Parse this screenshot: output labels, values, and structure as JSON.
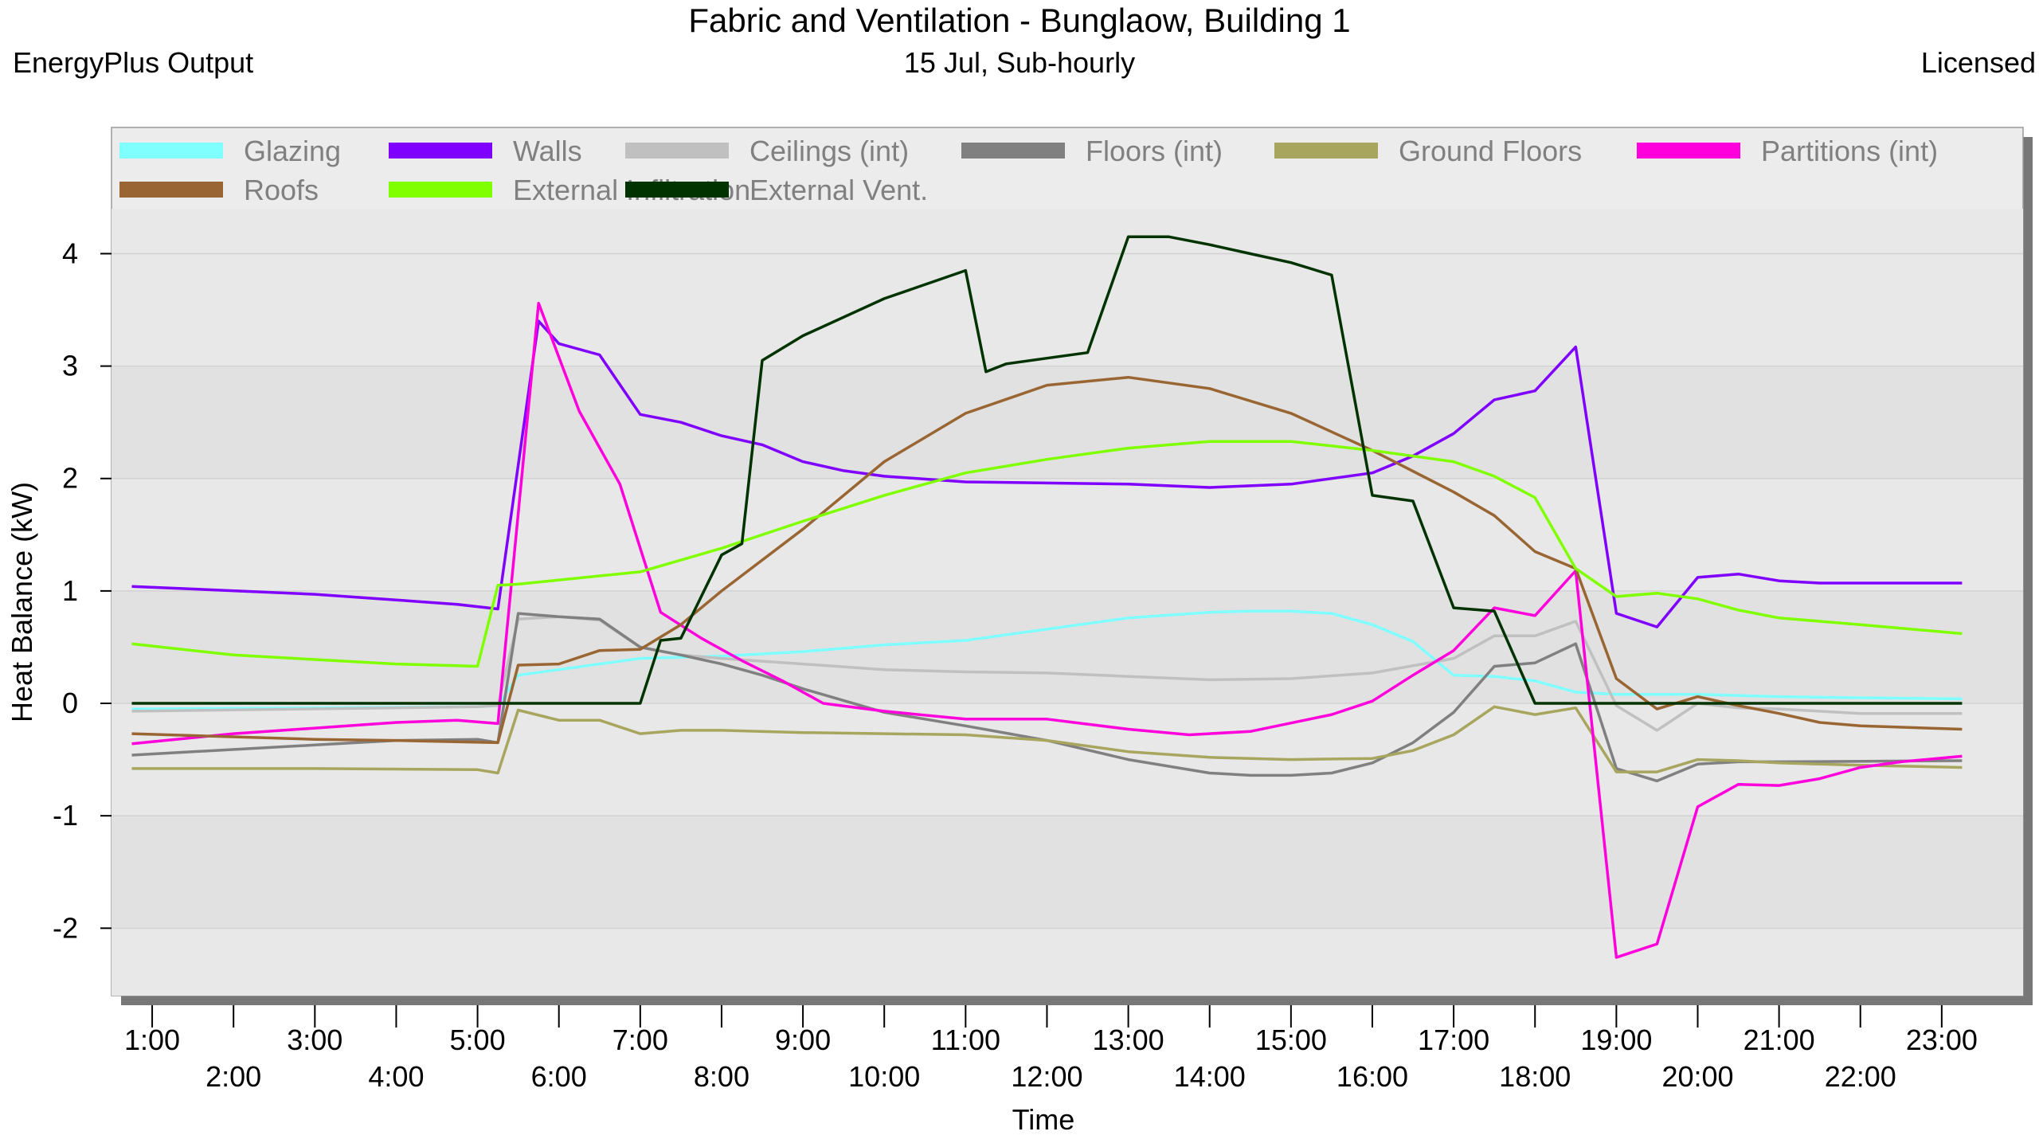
{
  "header": {
    "title": "Fabric and Ventilation - Bunglaow, Building 1",
    "source": "EnergyPlus Output",
    "subtitle": "15 Jul, Sub-hourly",
    "license": "Licensed"
  },
  "chart_data": {
    "type": "line",
    "title": "Fabric and Ventilation - Bunglaow, Building 1",
    "subtitle": "15 Jul, Sub-hourly",
    "xlabel": "Time",
    "ylabel": "Heat Balance (kW)",
    "xlim": [
      0.5,
      24
    ],
    "ylim": [
      -2.6,
      4.4
    ],
    "yticks": [
      -2,
      -1,
      0,
      1,
      2,
      3,
      4
    ],
    "xticks": [
      {
        "h": 1,
        "label": "1:00"
      },
      {
        "h": 2,
        "label": "2:00"
      },
      {
        "h": 3,
        "label": "3:00"
      },
      {
        "h": 4,
        "label": "4:00"
      },
      {
        "h": 5,
        "label": "5:00"
      },
      {
        "h": 6,
        "label": "6:00"
      },
      {
        "h": 7,
        "label": "7:00"
      },
      {
        "h": 8,
        "label": "8:00"
      },
      {
        "h": 9,
        "label": "9:00"
      },
      {
        "h": 10,
        "label": "10:00"
      },
      {
        "h": 11,
        "label": "11:00"
      },
      {
        "h": 12,
        "label": "12:00"
      },
      {
        "h": 13,
        "label": "13:00"
      },
      {
        "h": 14,
        "label": "14:00"
      },
      {
        "h": 15,
        "label": "15:00"
      },
      {
        "h": 16,
        "label": "16:00"
      },
      {
        "h": 17,
        "label": "17:00"
      },
      {
        "h": 18,
        "label": "18:00"
      },
      {
        "h": 19,
        "label": "19:00"
      },
      {
        "h": 20,
        "label": "20:00"
      },
      {
        "h": 21,
        "label": "21:00"
      },
      {
        "h": 22,
        "label": "22:00"
      },
      {
        "h": 23,
        "label": "23:00"
      }
    ],
    "grid": true,
    "legend_position": "top",
    "series": [
      {
        "name": "Glazing",
        "color": "#80ffff",
        "points": [
          [
            0.75,
            -0.05
          ],
          [
            5,
            -0.03
          ],
          [
            5.25,
            -0.02
          ],
          [
            5.5,
            0.25
          ],
          [
            6,
            0.3
          ],
          [
            6.5,
            0.35
          ],
          [
            7,
            0.4
          ],
          [
            8,
            0.42
          ],
          [
            9,
            0.46
          ],
          [
            10,
            0.52
          ],
          [
            11,
            0.56
          ],
          [
            12,
            0.66
          ],
          [
            13,
            0.76
          ],
          [
            14,
            0.81
          ],
          [
            14.5,
            0.82
          ],
          [
            15,
            0.82
          ],
          [
            15.5,
            0.8
          ],
          [
            16,
            0.7
          ],
          [
            16.5,
            0.55
          ],
          [
            17,
            0.25
          ],
          [
            17.5,
            0.24
          ],
          [
            18,
            0.2
          ],
          [
            18.5,
            0.1
          ],
          [
            19,
            0.08
          ],
          [
            20,
            0.08
          ],
          [
            21,
            0.06
          ],
          [
            22,
            0.05
          ],
          [
            23.25,
            0.04
          ]
        ]
      },
      {
        "name": "Walls",
        "color": "#8000ff",
        "points": [
          [
            0.75,
            1.04
          ],
          [
            3,
            0.97
          ],
          [
            4,
            0.92
          ],
          [
            4.75,
            0.88
          ],
          [
            5.25,
            0.84
          ],
          [
            5.75,
            3.4
          ],
          [
            6,
            3.2
          ],
          [
            6.5,
            3.1
          ],
          [
            7,
            2.57
          ],
          [
            7.5,
            2.5
          ],
          [
            8,
            2.38
          ],
          [
            8.5,
            2.3
          ],
          [
            9,
            2.15
          ],
          [
            9.5,
            2.07
          ],
          [
            10,
            2.02
          ],
          [
            11,
            1.97
          ],
          [
            12,
            1.96
          ],
          [
            13,
            1.95
          ],
          [
            14,
            1.92
          ],
          [
            15,
            1.95
          ],
          [
            16,
            2.05
          ],
          [
            16.5,
            2.2
          ],
          [
            17,
            2.4
          ],
          [
            17.5,
            2.7
          ],
          [
            18,
            2.78
          ],
          [
            18.5,
            3.17
          ],
          [
            19,
            0.8
          ],
          [
            19.5,
            0.68
          ],
          [
            20,
            1.12
          ],
          [
            20.5,
            1.15
          ],
          [
            21,
            1.09
          ],
          [
            21.5,
            1.07
          ],
          [
            23.25,
            1.07
          ]
        ]
      },
      {
        "name": "Ceilings (int)",
        "color": "#c0c0c0",
        "points": [
          [
            0.75,
            -0.07
          ],
          [
            5,
            -0.03
          ],
          [
            5.25,
            -0.02
          ],
          [
            5.5,
            0.75
          ],
          [
            6,
            0.77
          ],
          [
            6.5,
            0.74
          ],
          [
            7,
            0.5
          ],
          [
            7.5,
            0.43
          ],
          [
            8,
            0.4
          ],
          [
            9,
            0.35
          ],
          [
            10,
            0.3
          ],
          [
            11,
            0.28
          ],
          [
            12,
            0.27
          ],
          [
            13,
            0.24
          ],
          [
            14,
            0.21
          ],
          [
            15,
            0.22
          ],
          [
            16,
            0.27
          ],
          [
            17,
            0.4
          ],
          [
            17.5,
            0.6
          ],
          [
            18,
            0.6
          ],
          [
            18.5,
            0.73
          ],
          [
            19,
            -0.02
          ],
          [
            19.5,
            -0.24
          ],
          [
            20,
            0
          ],
          [
            20.5,
            -0.04
          ],
          [
            21,
            -0.05
          ],
          [
            22,
            -0.09
          ],
          [
            23.25,
            -0.09
          ]
        ]
      },
      {
        "name": "Floors (int)",
        "color": "#808080",
        "points": [
          [
            0.75,
            -0.46
          ],
          [
            3,
            -0.37
          ],
          [
            4,
            -0.33
          ],
          [
            5,
            -0.32
          ],
          [
            5.25,
            -0.35
          ],
          [
            5.5,
            0.8
          ],
          [
            6,
            0.77
          ],
          [
            6.5,
            0.75
          ],
          [
            7,
            0.5
          ],
          [
            7.5,
            0.43
          ],
          [
            8,
            0.35
          ],
          [
            8.5,
            0.25
          ],
          [
            9,
            0.13
          ],
          [
            10,
            -0.08
          ],
          [
            11,
            -0.2
          ],
          [
            12,
            -0.33
          ],
          [
            13,
            -0.5
          ],
          [
            14,
            -0.62
          ],
          [
            14.5,
            -0.64
          ],
          [
            15,
            -0.64
          ],
          [
            15.5,
            -0.62
          ],
          [
            16,
            -0.53
          ],
          [
            16.5,
            -0.35
          ],
          [
            17,
            -0.08
          ],
          [
            17.5,
            0.33
          ],
          [
            18,
            0.36
          ],
          [
            18.5,
            0.53
          ],
          [
            19,
            -0.58
          ],
          [
            19.5,
            -0.69
          ],
          [
            20,
            -0.54
          ],
          [
            20.5,
            -0.52
          ],
          [
            21,
            -0.52
          ],
          [
            23.25,
            -0.51
          ]
        ]
      },
      {
        "name": "Ground Floors",
        "color": "#a8a55e",
        "points": [
          [
            0.75,
            -0.58
          ],
          [
            3,
            -0.58
          ],
          [
            5,
            -0.59
          ],
          [
            5.25,
            -0.62
          ],
          [
            5.5,
            -0.06
          ],
          [
            6,
            -0.15
          ],
          [
            6.5,
            -0.15
          ],
          [
            7,
            -0.27
          ],
          [
            7.5,
            -0.24
          ],
          [
            8,
            -0.24
          ],
          [
            9,
            -0.26
          ],
          [
            10,
            -0.27
          ],
          [
            11,
            -0.28
          ],
          [
            12,
            -0.33
          ],
          [
            13,
            -0.43
          ],
          [
            14,
            -0.48
          ],
          [
            15,
            -0.5
          ],
          [
            16,
            -0.49
          ],
          [
            16.5,
            -0.42
          ],
          [
            17,
            -0.28
          ],
          [
            17.5,
            -0.03
          ],
          [
            18,
            -0.1
          ],
          [
            18.5,
            -0.04
          ],
          [
            19,
            -0.61
          ],
          [
            19.5,
            -0.61
          ],
          [
            20,
            -0.5
          ],
          [
            20.5,
            -0.51
          ],
          [
            21,
            -0.53
          ],
          [
            22,
            -0.55
          ],
          [
            23.25,
            -0.57
          ]
        ]
      },
      {
        "name": "Partitions (int)",
        "color": "#ff00dd",
        "points": [
          [
            0.75,
            -0.36
          ],
          [
            2,
            -0.27
          ],
          [
            3,
            -0.22
          ],
          [
            4,
            -0.17
          ],
          [
            4.75,
            -0.15
          ],
          [
            5.25,
            -0.18
          ],
          [
            5.75,
            3.56
          ],
          [
            6.25,
            2.6
          ],
          [
            6.75,
            1.95
          ],
          [
            7.25,
            0.81
          ],
          [
            7.75,
            0.58
          ],
          [
            8.25,
            0.38
          ],
          [
            8.75,
            0.2
          ],
          [
            9.25,
            0
          ],
          [
            10,
            -0.07
          ],
          [
            11,
            -0.14
          ],
          [
            12,
            -0.14
          ],
          [
            13,
            -0.23
          ],
          [
            13.75,
            -0.28
          ],
          [
            14.5,
            -0.25
          ],
          [
            15.5,
            -0.1
          ],
          [
            16,
            0.02
          ],
          [
            16.5,
            0.25
          ],
          [
            17,
            0.47
          ],
          [
            17.5,
            0.85
          ],
          [
            18,
            0.78
          ],
          [
            18.5,
            1.18
          ],
          [
            19,
            -2.26
          ],
          [
            19.5,
            -2.14
          ],
          [
            20,
            -0.92
          ],
          [
            20.5,
            -0.72
          ],
          [
            21,
            -0.73
          ],
          [
            21.5,
            -0.67
          ],
          [
            22,
            -0.57
          ],
          [
            22.5,
            -0.52
          ],
          [
            23.25,
            -0.47
          ]
        ]
      },
      {
        "name": "Roofs",
        "color": "#996633",
        "points": [
          [
            0.75,
            -0.27
          ],
          [
            3,
            -0.32
          ],
          [
            4,
            -0.33
          ],
          [
            5.25,
            -0.35
          ],
          [
            5.5,
            0.34
          ],
          [
            6,
            0.35
          ],
          [
            6.5,
            0.47
          ],
          [
            7,
            0.48
          ],
          [
            7.5,
            0.7
          ],
          [
            8,
            1.0
          ],
          [
            9,
            1.55
          ],
          [
            10,
            2.15
          ],
          [
            11,
            2.58
          ],
          [
            12,
            2.83
          ],
          [
            13,
            2.9
          ],
          [
            14,
            2.8
          ],
          [
            15,
            2.58
          ],
          [
            16,
            2.25
          ],
          [
            17,
            1.88
          ],
          [
            17.5,
            1.67
          ],
          [
            18,
            1.35
          ],
          [
            18.5,
            1.2
          ],
          [
            19,
            0.22
          ],
          [
            19.5,
            -0.05
          ],
          [
            20,
            0.06
          ],
          [
            20.5,
            -0.02
          ],
          [
            21,
            -0.09
          ],
          [
            21.5,
            -0.17
          ],
          [
            22,
            -0.2
          ],
          [
            23.25,
            -0.23
          ]
        ]
      },
      {
        "name": "External Infiltration",
        "color": "#80ff00",
        "points": [
          [
            0.75,
            0.53
          ],
          [
            2,
            0.43
          ],
          [
            3,
            0.39
          ],
          [
            4,
            0.35
          ],
          [
            5,
            0.33
          ],
          [
            5.25,
            1.05
          ],
          [
            5.5,
            1.06
          ],
          [
            7,
            1.17
          ],
          [
            8,
            1.38
          ],
          [
            9,
            1.62
          ],
          [
            10,
            1.85
          ],
          [
            11,
            2.05
          ],
          [
            12,
            2.17
          ],
          [
            13,
            2.27
          ],
          [
            14,
            2.33
          ],
          [
            15,
            2.33
          ],
          [
            16,
            2.25
          ],
          [
            17,
            2.15
          ],
          [
            17.5,
            2.02
          ],
          [
            18,
            1.83
          ],
          [
            18.5,
            1.2
          ],
          [
            19,
            0.95
          ],
          [
            19.5,
            0.98
          ],
          [
            20,
            0.93
          ],
          [
            20.5,
            0.83
          ],
          [
            21,
            0.76
          ],
          [
            22,
            0.7
          ],
          [
            23.25,
            0.62
          ]
        ]
      },
      {
        "name": "External Vent.",
        "color": "#003300",
        "points": [
          [
            0.75,
            0
          ],
          [
            7,
            0
          ],
          [
            7.25,
            0.56
          ],
          [
            7.5,
            0.58
          ],
          [
            8,
            1.32
          ],
          [
            8.25,
            1.42
          ],
          [
            8.5,
            3.05
          ],
          [
            9,
            3.27
          ],
          [
            10,
            3.6
          ],
          [
            11,
            3.85
          ],
          [
            11.25,
            2.95
          ],
          [
            11.5,
            3.02
          ],
          [
            12,
            3.07
          ],
          [
            12.5,
            3.12
          ],
          [
            13,
            4.15
          ],
          [
            13.5,
            4.15
          ],
          [
            14,
            4.08
          ],
          [
            14.5,
            4.0
          ],
          [
            15,
            3.92
          ],
          [
            15.5,
            3.81
          ],
          [
            16,
            1.85
          ],
          [
            16.5,
            1.8
          ],
          [
            17,
            0.85
          ],
          [
            17.5,
            0.82
          ],
          [
            18,
            0
          ],
          [
            23.25,
            0
          ]
        ]
      }
    ]
  }
}
